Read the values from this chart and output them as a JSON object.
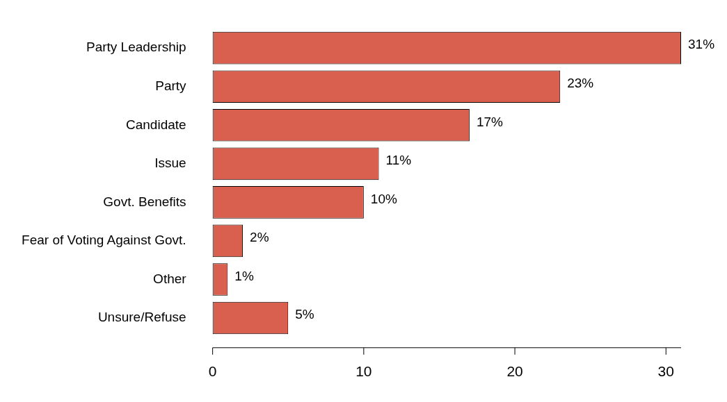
{
  "chart_data": {
    "type": "bar",
    "orientation": "horizontal",
    "categories": [
      "Party Leadership",
      "Party",
      "Candidate",
      "Issue",
      "Govt. Benefits",
      "Fear of Voting Against Govt.",
      "Other",
      "Unsure/Refuse"
    ],
    "values": [
      31,
      23,
      17,
      11,
      10,
      2,
      1,
      5
    ],
    "value_labels": [
      "31%",
      "23%",
      "17%",
      "11%",
      "10%",
      "2%",
      "1%",
      "5%"
    ],
    "color": "#d9604f",
    "xlim": [
      0,
      31
    ],
    "xticks": [
      0,
      10,
      20,
      30
    ]
  }
}
